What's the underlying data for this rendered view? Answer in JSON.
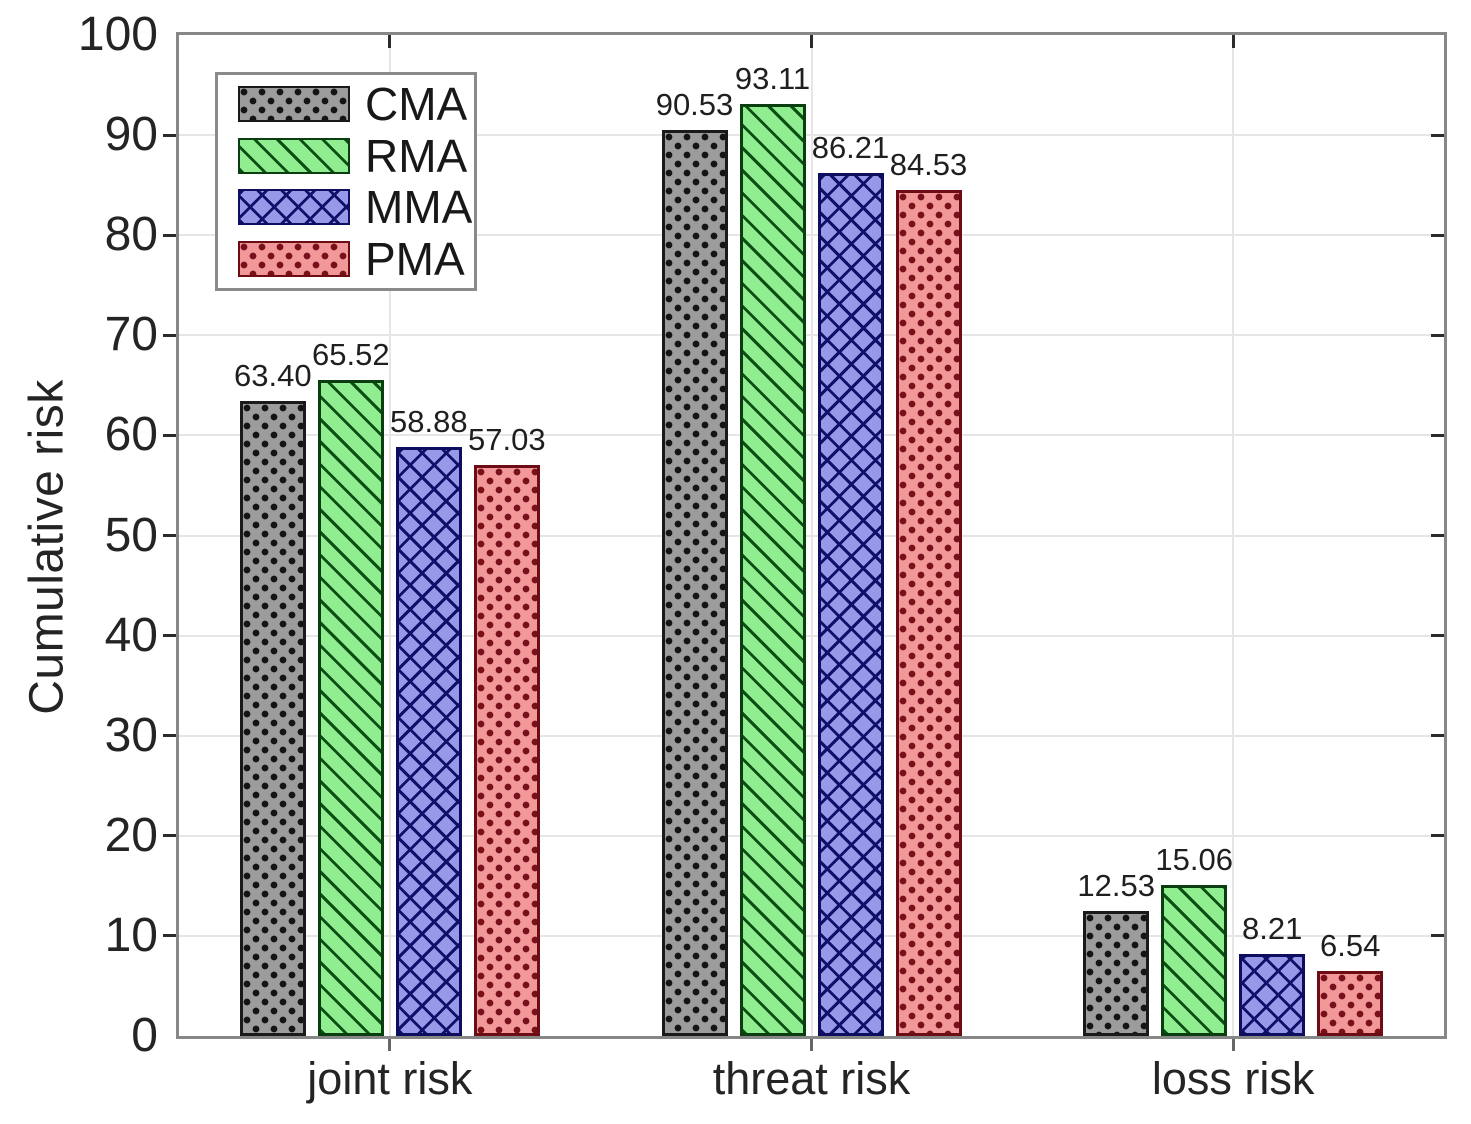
{
  "figure": {
    "background": "#ffffff",
    "axis_color": "#878787",
    "grid_color": "#e6e6e6",
    "tick_color": "#2b2b2b",
    "text_color": "#242424"
  },
  "chart_data": {
    "type": "bar",
    "title": "",
    "ylabel": "Cumulative risk",
    "xlabel": "",
    "ylim": [
      0,
      100
    ],
    "yticks": [
      0,
      10,
      20,
      30,
      40,
      50,
      60,
      70,
      80,
      90,
      100
    ],
    "grid": "horizontal gridlines at every ytick plus vertical gridline at each category center",
    "legend_position": "top-left inside plot area",
    "categories": [
      "joint risk",
      "threat risk",
      "loss risk"
    ],
    "series": [
      {
        "name": "CMA",
        "values": [
          63.4,
          90.53,
          12.53
        ],
        "value_labels": [
          "63.40",
          "90.53",
          "12.53"
        ],
        "fill": "#9c9c9c",
        "pattern": "dots",
        "pattern_color": "#141414",
        "edge_color": "#1a1a1a"
      },
      {
        "name": "RMA",
        "values": [
          65.52,
          93.11,
          15.06
        ],
        "value_labels": [
          "65.52",
          "93.11",
          "15.06"
        ],
        "fill": "#90ee90",
        "pattern": "diagonal",
        "pattern_color": "#0c4f14",
        "edge_color": "#0a3d10"
      },
      {
        "name": "MMA",
        "values": [
          58.88,
          86.21,
          8.21
        ],
        "value_labels": [
          "58.88",
          "86.21",
          "8.21"
        ],
        "fill": "#9898e8",
        "pattern": "crosshatch",
        "pattern_color": "#10106b",
        "edge_color": "#0e0e5e"
      },
      {
        "name": "PMA",
        "values": [
          57.03,
          84.53,
          6.54
        ],
        "value_labels": [
          "57.03",
          "84.53",
          "6.54"
        ],
        "fill": "#f29899",
        "pattern": "dots",
        "pattern_color": "#77101a",
        "edge_color": "#6d0c15"
      }
    ]
  }
}
